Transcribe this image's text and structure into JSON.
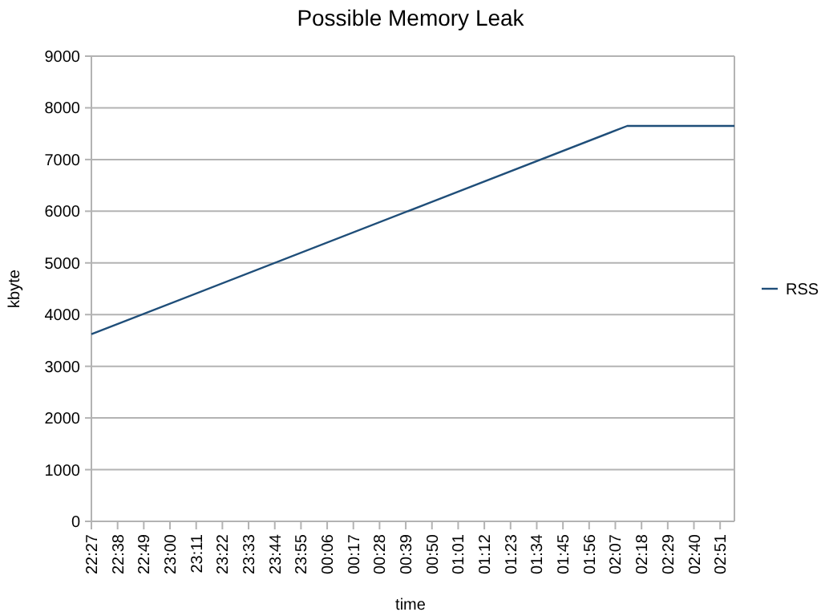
{
  "chart_data": {
    "type": "line",
    "title": "Possible Memory Leak",
    "xlabel": "time",
    "ylabel": "kbyte",
    "x": [
      "2000-01-01T22:27",
      "2000-01-02T02:12",
      "2000-01-02T02:57"
    ],
    "series": [
      {
        "name": "RSS",
        "color": "#1f4e79",
        "values": [
          3620,
          7650,
          7650
        ]
      }
    ],
    "xlim": [
      "2000-01-01T22:27",
      "2000-01-02T02:57"
    ],
    "xticks": [
      {
        "value": "2000-01-01T22:27",
        "label": "22:27"
      },
      {
        "value": "2000-01-01T22:38",
        "label": "22:38"
      },
      {
        "value": "2000-01-01T22:49",
        "label": "22:49"
      },
      {
        "value": "2000-01-01T23:00",
        "label": "23:00"
      },
      {
        "value": "2000-01-01T23:11",
        "label": "23:11"
      },
      {
        "value": "2000-01-01T23:22",
        "label": "23:22"
      },
      {
        "value": "2000-01-01T23:33",
        "label": "23:33"
      },
      {
        "value": "2000-01-01T23:44",
        "label": "23:44"
      },
      {
        "value": "2000-01-01T23:55",
        "label": "23:55"
      },
      {
        "value": "2000-01-02T00:06",
        "label": "00:06"
      },
      {
        "value": "2000-01-02T00:17",
        "label": "00:17"
      },
      {
        "value": "2000-01-02T00:28",
        "label": "00:28"
      },
      {
        "value": "2000-01-02T00:39",
        "label": "00:39"
      },
      {
        "value": "2000-01-02T00:50",
        "label": "00:50"
      },
      {
        "value": "2000-01-02T01:01",
        "label": "01:01"
      },
      {
        "value": "2000-01-02T01:12",
        "label": "01:12"
      },
      {
        "value": "2000-01-02T01:23",
        "label": "01:23"
      },
      {
        "value": "2000-01-02T01:34",
        "label": "01:34"
      },
      {
        "value": "2000-01-02T01:45",
        "label": "01:45"
      },
      {
        "value": "2000-01-02T01:56",
        "label": "01:56"
      },
      {
        "value": "2000-01-02T02:07",
        "label": "02:07"
      },
      {
        "value": "2000-01-02T02:18",
        "label": "02:18"
      },
      {
        "value": "2000-01-02T02:29",
        "label": "02:29"
      },
      {
        "value": "2000-01-02T02:40",
        "label": "02:40"
      },
      {
        "value": "2000-01-02T02:51",
        "label": "02:51"
      }
    ],
    "ylim": [
      0,
      9000
    ],
    "yticks": [
      0,
      1000,
      2000,
      3000,
      4000,
      5000,
      6000,
      7000,
      8000,
      9000
    ],
    "grid": "y",
    "legend": "right",
    "marker": "none",
    "line_style": "solid"
  }
}
